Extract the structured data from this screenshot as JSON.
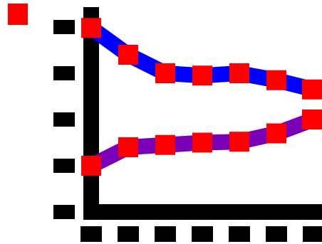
{
  "chart_data": {
    "type": "line",
    "title": "",
    "xlabel": "",
    "ylabel": "",
    "x": [
      1,
      2,
      3,
      4,
      5,
      6,
      7
    ],
    "xlim": [
      1,
      7
    ],
    "ylim": [
      0,
      4
    ],
    "y_ticks": [
      0,
      1,
      2,
      3,
      4
    ],
    "grid": false,
    "legend": "top-left",
    "series": [
      {
        "color": "#0000ff",
        "marker_color": "#ff0000",
        "values": [
          3.98,
          3.4,
          3.0,
          2.95,
          3.0,
          2.85,
          2.65
        ]
      },
      {
        "color": "#7a00b8",
        "marker_color": "#ff0000",
        "values": [
          1.0,
          1.4,
          1.45,
          1.5,
          1.52,
          1.7,
          2.0
        ]
      }
    ],
    "colors": {
      "axis": "#000000",
      "background": "#ffffff"
    }
  }
}
